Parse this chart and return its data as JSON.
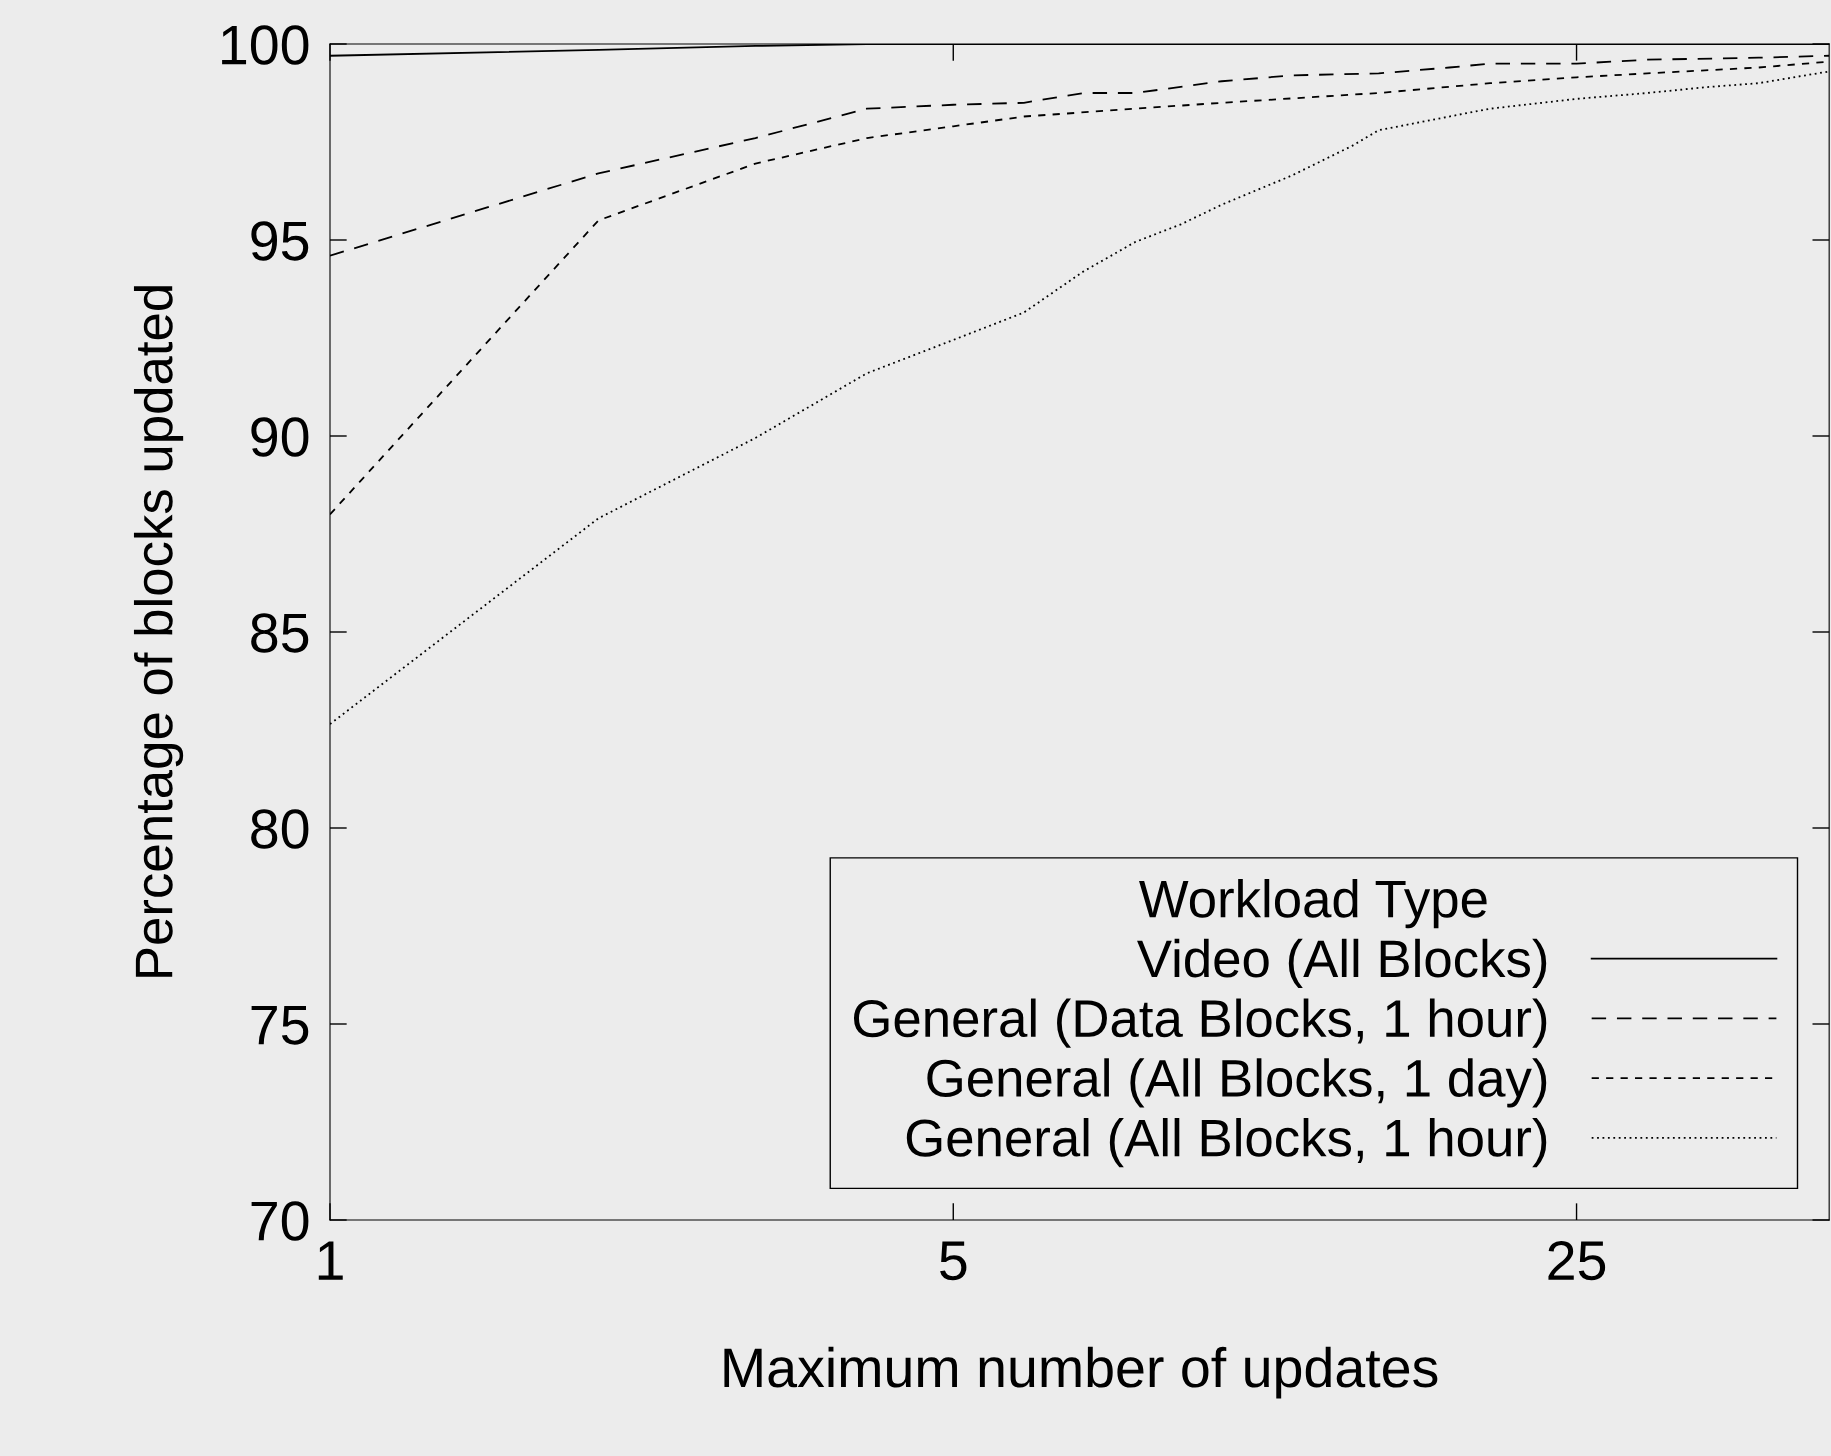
{
  "chart_data": {
    "type": "line",
    "xlabel": "Maximum number of updates",
    "ylabel": "Percentage of blocks updated",
    "legend_title": "Workload Type",
    "log": "x",
    "xlim": [
      1,
      48
    ],
    "ylim": [
      70,
      100
    ],
    "xticks": [
      1,
      5,
      25
    ],
    "yticks": [
      70,
      75,
      80,
      85,
      90,
      95,
      100
    ],
    "grid": false,
    "legend": "bottom right",
    "marker": "none",
    "series": [
      {
        "name": "Video (All Blocks)",
        "color": "#000000",
        "line_style": "solid",
        "x": [
          1,
          2,
          3,
          4,
          5,
          10,
          25,
          48
        ],
        "values": [
          99.7,
          99.85,
          99.95,
          100,
          100,
          100,
          100,
          100
        ]
      },
      {
        "name": "General (Data Blocks, 1 hour)",
        "color": "#000000",
        "line_style": "dashed",
        "x": [
          1,
          2,
          3,
          4,
          5,
          6,
          7,
          8,
          10,
          12,
          15,
          18,
          20,
          25,
          30,
          40,
          48
        ],
        "values": [
          94.6,
          96.7,
          97.6,
          98.35,
          98.45,
          98.5,
          98.75,
          98.75,
          99.05,
          99.2,
          99.25,
          99.4,
          99.5,
          99.5,
          99.6,
          99.65,
          99.7
        ]
      },
      {
        "name": "General (All Blocks, 1 day)",
        "color": "#000000",
        "line_style": "short dashed",
        "x": [
          1,
          2,
          3,
          4,
          5,
          6,
          8,
          10,
          15,
          20,
          25,
          30,
          40,
          48
        ],
        "values": [
          88.0,
          95.5,
          96.95,
          97.6,
          97.9,
          98.15,
          98.35,
          98.5,
          98.75,
          99.0,
          99.15,
          99.25,
          99.4,
          99.55
        ]
      },
      {
        "name": "General (All Blocks, 1 hour)",
        "color": "#000000",
        "line_style": "dotted",
        "x": [
          1,
          2,
          3,
          4,
          5,
          6,
          7,
          8,
          9,
          10,
          12,
          14,
          15,
          18,
          20,
          25,
          30,
          35,
          40,
          48
        ],
        "values": [
          82.65,
          87.9,
          89.95,
          91.6,
          92.45,
          93.15,
          94.2,
          94.95,
          95.4,
          95.9,
          96.65,
          97.4,
          97.8,
          98.15,
          98.35,
          98.6,
          98.75,
          98.9,
          99.0,
          99.3
        ]
      }
    ]
  }
}
